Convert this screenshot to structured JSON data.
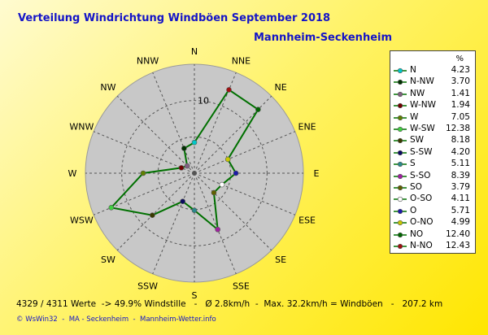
{
  "title": "Verteilung Windrichtung Windböen  September 2018",
  "subtitle": "Mannheim-Seckenheim",
  "legend_header": "%",
  "footer": "4329 / 4311 Werte  -> 49.9% Windstille   -   Ø 2.8km/h  -  Max. 32.2km/h = Windböen   -   207.2 km",
  "credits": "© WsWin32  -  MA - Seckenheim  -  Mannheim-Wetter.info",
  "chart_data": {
    "type": "radar",
    "title": "Verteilung Windrichtung Windböen  September 2018",
    "subtitle": "Mannheim-Seckenheim",
    "radial_max": 15,
    "radial_ticks": [
      {
        "value": 10,
        "label": "10"
      }
    ],
    "directions": [
      "N",
      "NNE",
      "NE",
      "ENE",
      "E",
      "ESE",
      "SE",
      "SSE",
      "S",
      "SSW",
      "SW",
      "WSW",
      "W",
      "WNW",
      "NW",
      "NNW"
    ],
    "direction_labels": [
      "N",
      "NNE",
      "NE",
      "ENE",
      "E",
      "ESE",
      "SE",
      "SSE",
      "S",
      "SSW",
      "SW",
      "WSW",
      "W",
      "WNW",
      "NW",
      "NNW"
    ],
    "values_by_direction": [
      4.23,
      12.43,
      12.4,
      4.99,
      5.71,
      4.11,
      3.79,
      8.39,
      5.11,
      4.2,
      8.18,
      12.38,
      7.05,
      1.94,
      1.41,
      3.7
    ],
    "marker_colors_by_direction": [
      "#00c8c8",
      "#a01010",
      "#006400",
      "#c8c800",
      "#1a1aa8",
      "#ffffff",
      "#606000",
      "#a020a0",
      "#2a8a8a",
      "#0a0a60",
      "#3a3a00",
      "#40d040",
      "#608000",
      "#700000",
      "#806080",
      "#003000"
    ],
    "series_color": "#007000",
    "legend": [
      {
        "label": "N",
        "value": "4.23",
        "color": "#00c8c8"
      },
      {
        "label": "N-NW",
        "value": "3.70",
        "color": "#003000"
      },
      {
        "label": "NW",
        "value": "1.41",
        "color": "#806080"
      },
      {
        "label": "W-NW",
        "value": "1.94",
        "color": "#700000"
      },
      {
        "label": "W",
        "value": "7.05",
        "color": "#608000"
      },
      {
        "label": "W-SW",
        "value": "12.38",
        "color": "#40d040"
      },
      {
        "label": "SW",
        "value": "8.18",
        "color": "#3a3a00"
      },
      {
        "label": "S-SW",
        "value": "4.20",
        "color": "#0a0a60"
      },
      {
        "label": "S",
        "value": "5.11",
        "color": "#2a8a8a"
      },
      {
        "label": "S-SO",
        "value": "8.39",
        "color": "#a020a0"
      },
      {
        "label": "SO",
        "value": "3.79",
        "color": "#606000"
      },
      {
        "label": "O-SO",
        "value": "4.11",
        "color": "#ffffff"
      },
      {
        "label": "O",
        "value": "5.71",
        "color": "#1a1aa8"
      },
      {
        "label": "O-NO",
        "value": "4.99",
        "color": "#c8c800"
      },
      {
        "label": "NO",
        "value": "12.40",
        "color": "#006400"
      },
      {
        "label": "N-NO",
        "value": "12.43",
        "color": "#a01010"
      }
    ]
  }
}
